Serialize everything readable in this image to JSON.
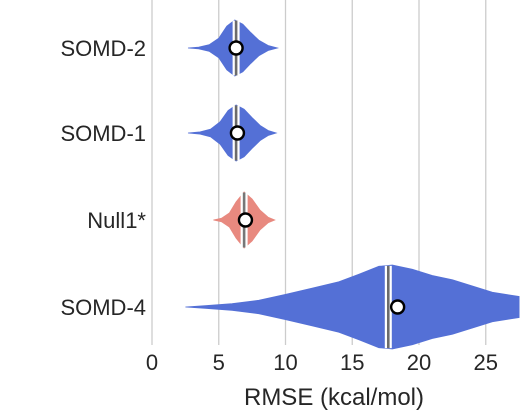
{
  "chart_data": {
    "type": "violin",
    "orientation": "horizontal",
    "xlabel": "RMSE (kcal/mol)",
    "xlim": [
      0,
      27.5
    ],
    "xticks": [
      0,
      5,
      10,
      15,
      20,
      25
    ],
    "grid": "vertical",
    "colors": {
      "blue": "#5470d6",
      "red": "#e8897f",
      "median_line": "#7f7f7f",
      "mean_marker": "#ffffff"
    },
    "series": [
      {
        "name": "SOMD-2",
        "color": "#5470d6",
        "median": 6.3,
        "mean": 6.3,
        "range": [
          2.7,
          9.4
        ],
        "density": [
          [
            2.7,
            0.0
          ],
          [
            3.5,
            0.03
          ],
          [
            4.3,
            0.12
          ],
          [
            5.0,
            0.35
          ],
          [
            5.6,
            0.78
          ],
          [
            6.2,
            1.0
          ],
          [
            6.8,
            0.85
          ],
          [
            7.4,
            0.55
          ],
          [
            8.0,
            0.28
          ],
          [
            8.7,
            0.09
          ],
          [
            9.4,
            0.0
          ]
        ]
      },
      {
        "name": "SOMD-1",
        "color": "#5470d6",
        "median": 6.3,
        "mean": 6.4,
        "range": [
          2.7,
          9.3
        ],
        "density": [
          [
            2.7,
            0.0
          ],
          [
            3.6,
            0.04
          ],
          [
            4.4,
            0.14
          ],
          [
            5.1,
            0.4
          ],
          [
            5.7,
            0.8
          ],
          [
            6.3,
            1.0
          ],
          [
            6.9,
            0.85
          ],
          [
            7.5,
            0.55
          ],
          [
            8.1,
            0.27
          ],
          [
            8.7,
            0.09
          ],
          [
            9.3,
            0.0
          ]
        ]
      },
      {
        "name": "Null1*",
        "color": "#e8897f",
        "median": 6.9,
        "mean": 7.0,
        "range": [
          4.6,
          9.2
        ],
        "density": [
          [
            4.6,
            0.0
          ],
          [
            5.2,
            0.06
          ],
          [
            5.8,
            0.25
          ],
          [
            6.3,
            0.65
          ],
          [
            6.9,
            1.0
          ],
          [
            7.5,
            0.75
          ],
          [
            8.1,
            0.35
          ],
          [
            8.7,
            0.1
          ],
          [
            9.2,
            0.0
          ]
        ]
      },
      {
        "name": "SOMD-4",
        "color": "#5470d6",
        "median": 17.7,
        "mean": 18.4,
        "range": [
          2.5,
          27.5
        ],
        "density": [
          [
            2.5,
            0.0
          ],
          [
            4.0,
            0.03
          ],
          [
            6.0,
            0.08
          ],
          [
            8.0,
            0.16
          ],
          [
            10.0,
            0.3
          ],
          [
            12.0,
            0.45
          ],
          [
            14.0,
            0.6
          ],
          [
            15.5,
            0.78
          ],
          [
            17.0,
            0.97
          ],
          [
            18.0,
            1.0
          ],
          [
            19.5,
            0.9
          ],
          [
            21.0,
            0.75
          ],
          [
            22.5,
            0.65
          ],
          [
            24.0,
            0.5
          ],
          [
            25.5,
            0.35
          ],
          [
            27.5,
            0.25
          ]
        ]
      }
    ]
  }
}
